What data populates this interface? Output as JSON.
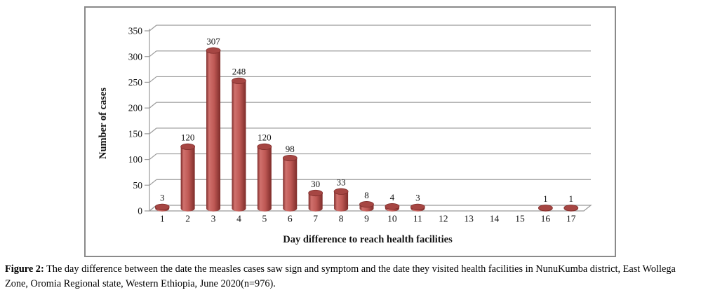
{
  "chart_data": {
    "type": "bar",
    "style": "3d-cylinder",
    "title": "",
    "xlabel": "Day difference to reach health facilities",
    "ylabel": "Number of cases",
    "categories": [
      "1",
      "2",
      "3",
      "4",
      "5",
      "6",
      "7",
      "8",
      "9",
      "10",
      "11",
      "12",
      "13",
      "14",
      "15",
      "16",
      "17"
    ],
    "values": [
      3,
      120,
      307,
      248,
      120,
      98,
      30,
      33,
      8,
      4,
      3,
      0,
      0,
      0,
      0,
      1,
      1
    ],
    "ylim": [
      0,
      350
    ],
    "yticks": [
      0,
      50,
      100,
      150,
      200,
      250,
      300,
      350
    ],
    "grid": true,
    "legend": false,
    "bar_color": "#bf5955"
  },
  "colors": {
    "background": "#ffffff",
    "chart_border": "#8a8a8a",
    "gridline": "#9a9a9a",
    "axis": "#9a9a9a",
    "bar_dark": "#7e2c2a",
    "bar_light": "#d0716d",
    "bar_mid": "#bf5955",
    "bar_top": "#a64643",
    "bar_edge": "#7f2d2b",
    "label_text": "#141414"
  },
  "caption": {
    "label": "Figure 2:",
    "text": "The day difference between the date the measles cases saw sign and symptom and the date they visited health facilities in NunuKumba district, East Wollega Zone, Oromia Regional state, Western Ethiopia, June 2020(n=976)."
  }
}
